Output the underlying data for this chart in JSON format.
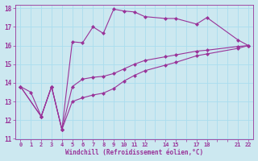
{
  "xlabel": "Windchill (Refroidissement éolien,°C)",
  "background_color": "#cce8f0",
  "line_color": "#993399",
  "grid_color": "#aaddee",
  "xlim": [
    -0.5,
    22.5
  ],
  "ylim": [
    11,
    18.2
  ],
  "xtick_vals": [
    0,
    1,
    2,
    3,
    4,
    5,
    6,
    7,
    8,
    9,
    10,
    11,
    12,
    13,
    14,
    15,
    16,
    17,
    18,
    19,
    20,
    21,
    22
  ],
  "xtick_labels": [
    "0",
    "1",
    "2",
    "3",
    "4",
    "5",
    "6",
    "7",
    "8",
    "9",
    "10",
    "11",
    "12",
    "",
    "14",
    "15",
    "",
    "17",
    "18",
    "",
    "",
    "21",
    "22"
  ],
  "yticks": [
    11,
    12,
    13,
    14,
    15,
    16,
    17,
    18
  ],
  "series": [
    {
      "x": [
        0,
        1,
        2,
        3,
        4,
        5,
        6,
        7,
        8,
        9,
        10,
        11,
        12,
        14,
        15,
        17,
        18,
        21,
        22
      ],
      "y": [
        13.8,
        13.5,
        12.2,
        13.8,
        11.5,
        16.2,
        16.15,
        17.0,
        16.65,
        17.95,
        17.85,
        17.8,
        17.55,
        17.45,
        17.45,
        17.15,
        17.5,
        16.3,
        16.0
      ]
    },
    {
      "x": [
        0,
        2,
        3,
        4,
        5,
        6,
        7,
        8,
        9,
        10,
        11,
        12,
        14,
        15,
        17,
        18,
        21,
        22
      ],
      "y": [
        13.8,
        12.2,
        13.8,
        11.5,
        13.8,
        14.2,
        14.3,
        14.35,
        14.5,
        14.75,
        15.0,
        15.2,
        15.4,
        15.5,
        15.7,
        15.75,
        15.95,
        16.0
      ]
    },
    {
      "x": [
        0,
        2,
        3,
        4,
        5,
        6,
        7,
        8,
        9,
        10,
        11,
        12,
        14,
        15,
        17,
        18,
        21,
        22
      ],
      "y": [
        13.8,
        12.2,
        13.8,
        11.5,
        13.0,
        13.2,
        13.35,
        13.45,
        13.7,
        14.1,
        14.4,
        14.65,
        14.95,
        15.1,
        15.45,
        15.55,
        15.85,
        16.0
      ]
    }
  ]
}
